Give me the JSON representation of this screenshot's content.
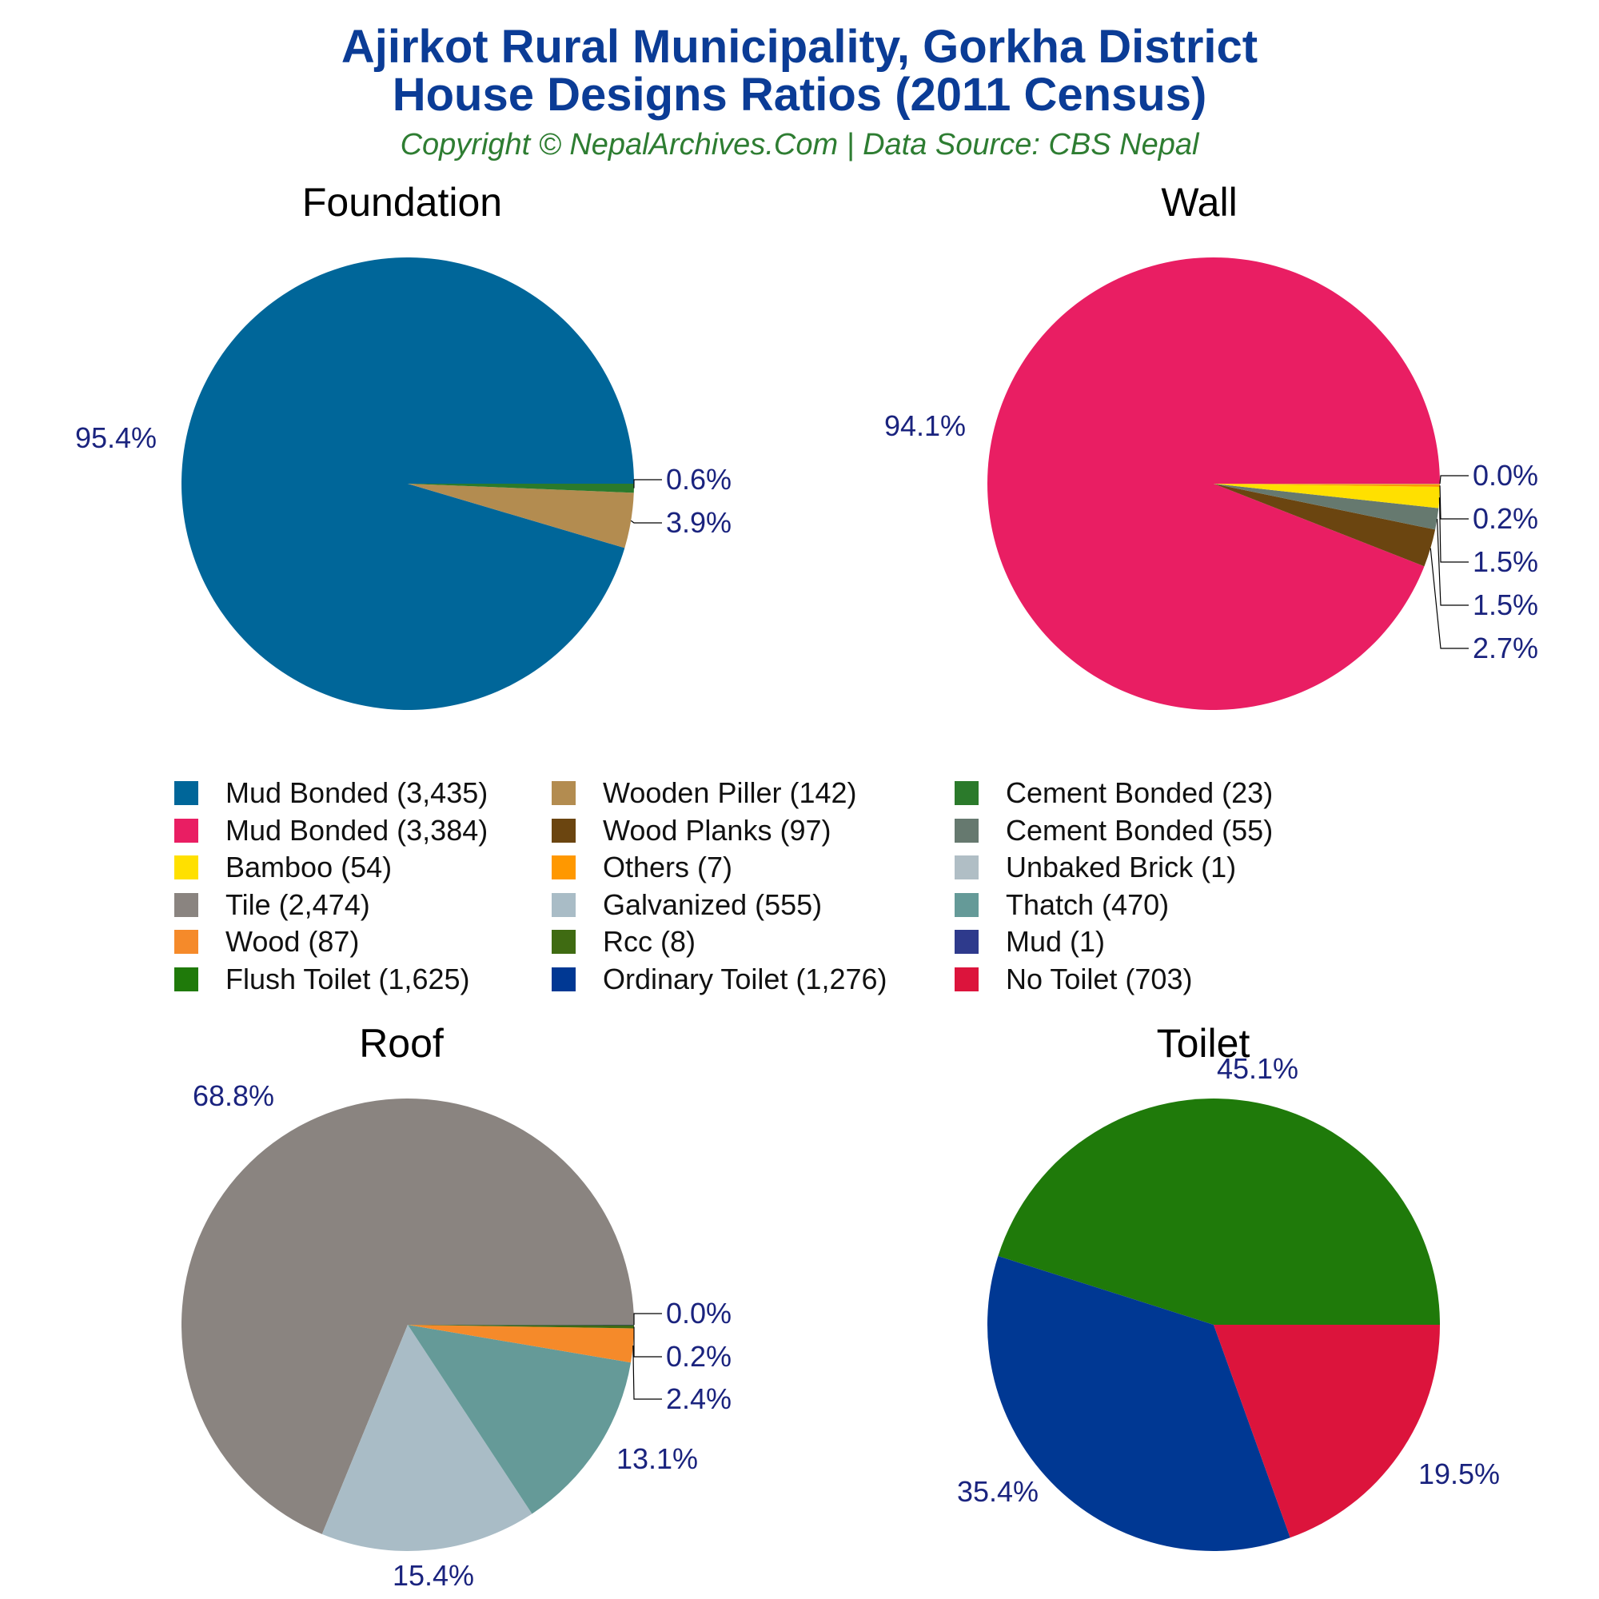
{
  "header": {
    "title_line1": "Ajirkot Rural Municipality, Gorkha District",
    "title_line2": "House Designs Ratios (2011 Census)",
    "subtitle": "Copyright © NepalArchives.Com | Data Source: CBS Nepal"
  },
  "colors": {
    "title": "#0b3c96",
    "subtitle": "#2e7d32",
    "pct_label": "#1a237e"
  },
  "chart_data": [
    {
      "type": "pie",
      "title": "Foundation",
      "start_angle_deg": 0,
      "direction": "clockwise-from-3-oclock",
      "slices": [
        {
          "label": "Mud Bonded (3,435)",
          "value": 3435,
          "pct_label": "95.4%",
          "color": "#006699"
        },
        {
          "label": "Wooden Piller (142)",
          "value": 142,
          "pct_label": "3.9%",
          "color": "#b38c50"
        },
        {
          "label": "Cement Bonded (23)",
          "value": 23,
          "pct_label": "0.6%",
          "color": "#2b7a2b"
        }
      ]
    },
    {
      "type": "pie",
      "title": "Wall",
      "slices": [
        {
          "label": "Mud Bonded (3,384)",
          "value": 3384,
          "pct_label": "94.1%",
          "color": "#e91e63"
        },
        {
          "label": "Wood Planks (97)",
          "value": 97,
          "pct_label": "2.7%",
          "color": "#6b4510"
        },
        {
          "label": "Cement Bonded (55)",
          "value": 55,
          "pct_label": "1.5%",
          "color": "#66796f"
        },
        {
          "label": "Bamboo (54)",
          "value": 54,
          "pct_label": "1.5%",
          "color": "#ffe000"
        },
        {
          "label": "Others (7)",
          "value": 7,
          "pct_label": "0.2%",
          "color": "#ff9800"
        },
        {
          "label": "Unbaked Brick (1)",
          "value": 1,
          "pct_label": "0.0%",
          "color": "#b0bec5"
        }
      ]
    },
    {
      "type": "pie",
      "title": "Roof",
      "slices": [
        {
          "label": "Tile (2,474)",
          "value": 2474,
          "pct_label": "68.8%",
          "color": "#8a8480"
        },
        {
          "label": "Galvanized (555)",
          "value": 555,
          "pct_label": "15.4%",
          "color": "#a9bcc6"
        },
        {
          "label": "Thatch (470)",
          "value": 470,
          "pct_label": "13.1%",
          "color": "#659a98"
        },
        {
          "label": "Wood (87)",
          "value": 87,
          "pct_label": "2.4%",
          "color": "#f58a2a"
        },
        {
          "label": "Rcc (8)",
          "value": 8,
          "pct_label": "0.2%",
          "color": "#3f6b12"
        },
        {
          "label": "Mud (1)",
          "value": 1,
          "pct_label": "0.0%",
          "color": "#2e3a8c"
        }
      ]
    },
    {
      "type": "pie",
      "title": "Toilet",
      "slices": [
        {
          "label": "Flush Toilet (1,625)",
          "value": 1625,
          "pct_label": "45.1%",
          "color": "#1f7a0a"
        },
        {
          "label": "Ordinary Toilet (1,276)",
          "value": 1276,
          "pct_label": "35.4%",
          "color": "#003893"
        },
        {
          "label": "No Toilet (703)",
          "value": 703,
          "pct_label": "19.5%",
          "color": "#dc143c"
        }
      ]
    }
  ],
  "legend": [
    {
      "label": "Mud Bonded (3,435)",
      "color": "#006699"
    },
    {
      "label": "Wooden Piller (142)",
      "color": "#b38c50"
    },
    {
      "label": "Cement Bonded (23)",
      "color": "#2b7a2b"
    },
    {
      "label": "Mud Bonded (3,384)",
      "color": "#e91e63"
    },
    {
      "label": "Wood Planks (97)",
      "color": "#6b4510"
    },
    {
      "label": "Cement Bonded (55)",
      "color": "#66796f"
    },
    {
      "label": "Bamboo (54)",
      "color": "#ffe000"
    },
    {
      "label": "Others (7)",
      "color": "#ff9800"
    },
    {
      "label": "Unbaked Brick (1)",
      "color": "#b0bec5"
    },
    {
      "label": "Tile (2,474)",
      "color": "#8a8480"
    },
    {
      "label": "Galvanized (555)",
      "color": "#a9bcc6"
    },
    {
      "label": "Thatch (470)",
      "color": "#659a98"
    },
    {
      "label": "Wood (87)",
      "color": "#f58a2a"
    },
    {
      "label": "Rcc (8)",
      "color": "#3f6b12"
    },
    {
      "label": "Mud (1)",
      "color": "#2e3a8c"
    },
    {
      "label": "Flush Toilet (1,625)",
      "color": "#1f7a0a"
    },
    {
      "label": "Ordinary Toilet (1,276)",
      "color": "#003893"
    },
    {
      "label": "No Toilet (703)",
      "color": "#dc143c"
    }
  ]
}
